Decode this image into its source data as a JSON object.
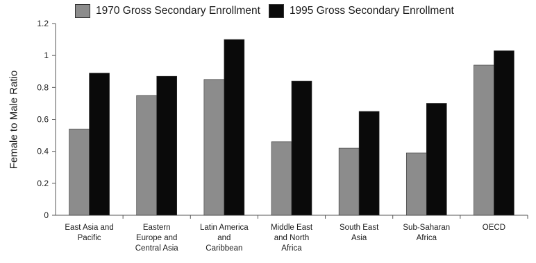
{
  "chart_data": {
    "type": "bar",
    "title": "",
    "xlabel": "",
    "ylabel": "Female to Male Ratio",
    "ylim": [
      0,
      1.2
    ],
    "yticks": [
      "0",
      "0.2",
      "0.4",
      "0.6",
      "0.8",
      "1",
      "1.2"
    ],
    "categories": [
      "East Asia and\nPacific",
      "Eastern\nEurope and\nCentral Asia",
      "Latin America\nand\nCaribbean",
      "Middle East\nand North\nAfrica",
      "South East\nAsia",
      "Sub-Saharan\nAfrica",
      "OECD"
    ],
    "series": [
      {
        "name": "1970 Gross Secondary Enrollment",
        "color": "#8c8c8c",
        "values": [
          0.54,
          0.75,
          0.85,
          0.46,
          0.42,
          0.39,
          0.94
        ]
      },
      {
        "name": "1995 Gross Secondary Enrollment",
        "color": "#0a0a0a",
        "values": [
          0.89,
          0.87,
          1.1,
          0.84,
          0.65,
          0.7,
          1.03
        ]
      }
    ],
    "grid": false,
    "legend_position": "top"
  }
}
